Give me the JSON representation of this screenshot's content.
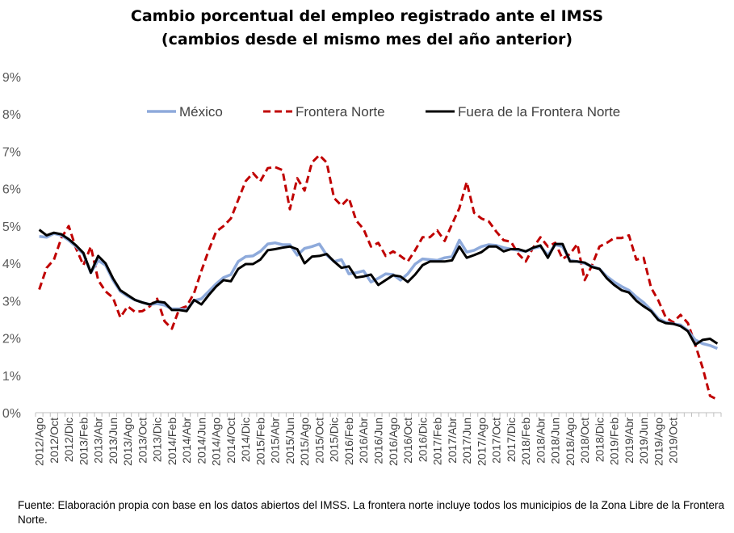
{
  "chart_data": {
    "type": "line",
    "title": [
      "Cambio porcentual del empleo registrado ante el IMSS",
      "(cambios desde el mismo mes del año anterior)"
    ],
    "xlabel": "",
    "ylabel": "",
    "ylim": [
      0,
      9
    ],
    "y_ticks": [
      "0%",
      "1%",
      "2%",
      "3%",
      "4%",
      "5%",
      "6%",
      "7%",
      "8%",
      "9%"
    ],
    "grid": false,
    "legend": "top",
    "x_tick_labels": [
      "2012/Ago",
      "2012/Oct",
      "2012/Dic",
      "2013/Feb",
      "2013/Abr",
      "2013/Jun",
      "2013/Ago",
      "2013/Oct",
      "2013/Dic",
      "2014/Feb",
      "2014/Abr",
      "2014/Jun",
      "2014/Ago",
      "2014/Oct",
      "2014/Dic",
      "2015/Feb",
      "2015/Abr",
      "2015/Jun",
      "2015/Ago",
      "2015/Oct",
      "2015/Dic",
      "2016/Feb",
      "2016/Abr",
      "2016/Jun",
      "2016/Ago",
      "2016/Oct",
      "2016/Dic",
      "2017/Feb",
      "2017/Abr",
      "2017/Jun",
      "2017/Ago",
      "2017/Oct",
      "2017/Dic",
      "2018/Feb",
      "2018/Abr",
      "2018/Jun",
      "2018/Ago",
      "2018/Oct",
      "2018/Dic",
      "2019/Feb",
      "2019/Abr",
      "2019/Jun",
      "2019/Ago",
      "2019/Oct"
    ],
    "series": [
      {
        "name": "México",
        "color": "#8eaadb",
        "style": "solid",
        "values": [
          4.72,
          4.7,
          4.8,
          4.75,
          4.62,
          4.45,
          4.25,
          3.75,
          4.08,
          3.95,
          3.55,
          3.25,
          3.12,
          3.02,
          2.95,
          2.9,
          2.92,
          2.88,
          2.78,
          2.78,
          2.75,
          3.0,
          3.05,
          3.25,
          3.45,
          3.62,
          3.7,
          4.05,
          4.18,
          4.2,
          4.32,
          4.52,
          4.55,
          4.5,
          4.5,
          4.22,
          4.4,
          4.45,
          4.52,
          4.22,
          4.05,
          4.1,
          3.72,
          3.75,
          3.8,
          3.5,
          3.6,
          3.72,
          3.7,
          3.55,
          3.72,
          3.98,
          4.12,
          4.1,
          4.08,
          4.15,
          4.18,
          4.62,
          4.3,
          4.35,
          4.45,
          4.5,
          4.48,
          4.42,
          4.38,
          4.35,
          4.32,
          4.4,
          4.45,
          4.22,
          4.5,
          4.45,
          4.08,
          4.05,
          4.0,
          3.92,
          3.85,
          3.65,
          3.5,
          3.38,
          3.28,
          3.1,
          2.95,
          2.75,
          2.52,
          2.42,
          2.38,
          2.35,
          2.2,
          1.95,
          1.85,
          1.8,
          1.72
        ]
      },
      {
        "name": "Frontera Norte",
        "color": "#c00000",
        "style": "dashed",
        "values": [
          3.3,
          3.88,
          4.1,
          4.68,
          5.0,
          4.4,
          3.95,
          4.45,
          3.55,
          3.25,
          3.08,
          2.55,
          2.85,
          2.7,
          2.72,
          2.85,
          3.05,
          2.45,
          2.25,
          2.78,
          2.85,
          3.2,
          3.8,
          4.35,
          4.85,
          5.0,
          5.2,
          5.7,
          6.2,
          6.42,
          6.2,
          6.55,
          6.58,
          6.5,
          5.45,
          6.28,
          5.95,
          6.7,
          6.9,
          6.7,
          5.75,
          5.55,
          5.75,
          5.15,
          4.92,
          4.45,
          4.55,
          4.2,
          4.32,
          4.2,
          4.05,
          4.35,
          4.7,
          4.7,
          4.88,
          4.6,
          5.05,
          5.48,
          6.18,
          5.35,
          5.2,
          5.12,
          4.85,
          4.62,
          4.58,
          4.25,
          4.05,
          4.42,
          4.7,
          4.45,
          4.55,
          4.12,
          4.25,
          4.52,
          3.55,
          3.95,
          4.45,
          4.55,
          4.68,
          4.68,
          4.75,
          4.1,
          4.15,
          3.35,
          3.0,
          2.55,
          2.42,
          2.62,
          2.4,
          1.82,
          1.2,
          0.45,
          0.35
        ]
      },
      {
        "name": "Fuera de la Frontera Norte",
        "color": "#000000",
        "style": "solid",
        "values": [
          4.9,
          4.75,
          4.82,
          4.78,
          4.65,
          4.48,
          4.28,
          3.75,
          4.2,
          4.0,
          3.6,
          3.28,
          3.15,
          3.02,
          2.95,
          2.9,
          2.98,
          2.95,
          2.75,
          2.75,
          2.72,
          3.02,
          2.9,
          3.15,
          3.38,
          3.55,
          3.52,
          3.85,
          3.98,
          3.98,
          4.1,
          4.35,
          4.38,
          4.42,
          4.45,
          4.38,
          4.0,
          4.18,
          4.2,
          4.25,
          4.05,
          3.88,
          3.92,
          3.62,
          3.65,
          3.7,
          3.42,
          3.55,
          3.68,
          3.65,
          3.5,
          3.7,
          3.95,
          4.05,
          4.05,
          4.05,
          4.08,
          4.45,
          4.15,
          4.22,
          4.3,
          4.45,
          4.45,
          4.32,
          4.38,
          4.38,
          4.32,
          4.42,
          4.48,
          4.15,
          4.52,
          4.52,
          4.05,
          4.05,
          4.02,
          3.9,
          3.85,
          3.6,
          3.42,
          3.28,
          3.22,
          3.0,
          2.85,
          2.72,
          2.48,
          2.4,
          2.38,
          2.32,
          2.18,
          1.82,
          1.95,
          1.98,
          1.85
        ]
      }
    ]
  },
  "source_note": "Fuente: Elaboración propia con base en los datos abiertos del IMSS. La frontera norte incluye todos los municipios de la Zona Libre de la Frontera Norte."
}
